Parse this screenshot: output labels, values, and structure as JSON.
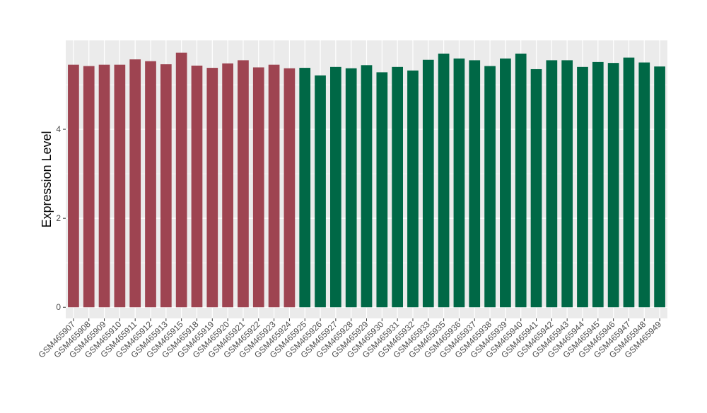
{
  "chart_data": {
    "type": "bar",
    "title": "",
    "xlabel": "",
    "ylabel": "Expression Level",
    "ylim": [
      -0.25,
      6.0
    ],
    "yticks": [
      0,
      2,
      4
    ],
    "grid": true,
    "legend": "none",
    "categories": [
      "GSM465907",
      "GSM465908",
      "GSM465909",
      "GSM465910",
      "GSM465911",
      "GSM465912",
      "GSM465913",
      "GSM465915",
      "GSM465918",
      "GSM465919",
      "GSM465920",
      "GSM465921",
      "GSM465922",
      "GSM465923",
      "GSM465924",
      "GSM465925",
      "GSM465926",
      "GSM465927",
      "GSM465928",
      "GSM465929",
      "GSM465930",
      "GSM465931",
      "GSM465932",
      "GSM465933",
      "GSM465935",
      "GSM465936",
      "GSM465937",
      "GSM465938",
      "GSM465939",
      "GSM465940",
      "GSM465941",
      "GSM465942",
      "GSM465943",
      "GSM465944",
      "GSM465945",
      "GSM465946",
      "GSM465947",
      "GSM465948",
      "GSM465949"
    ],
    "values": [
      5.45,
      5.42,
      5.45,
      5.45,
      5.57,
      5.53,
      5.46,
      5.72,
      5.43,
      5.38,
      5.48,
      5.55,
      5.39,
      5.45,
      5.37,
      5.38,
      5.21,
      5.4,
      5.37,
      5.44,
      5.28,
      5.4,
      5.32,
      5.56,
      5.7,
      5.59,
      5.55,
      5.42,
      5.59,
      5.7,
      5.35,
      5.55,
      5.55,
      5.4,
      5.51,
      5.49,
      5.61,
      5.5,
      5.41
    ],
    "colors": [
      "#9e4451",
      "#9e4451",
      "#9e4451",
      "#9e4451",
      "#9e4451",
      "#9e4451",
      "#9e4451",
      "#9e4451",
      "#9e4451",
      "#9e4451",
      "#9e4451",
      "#9e4451",
      "#9e4451",
      "#9e4451",
      "#9e4451",
      "#006846",
      "#006846",
      "#006846",
      "#006846",
      "#006846",
      "#006846",
      "#006846",
      "#006846",
      "#006846",
      "#006846",
      "#006846",
      "#006846",
      "#006846",
      "#006846",
      "#006846",
      "#006846",
      "#006846",
      "#006846",
      "#006846",
      "#006846",
      "#006846",
      "#006846",
      "#006846",
      "#006846"
    ],
    "panel_background": "#ebebeb",
    "grid_color": "#ffffff"
  }
}
